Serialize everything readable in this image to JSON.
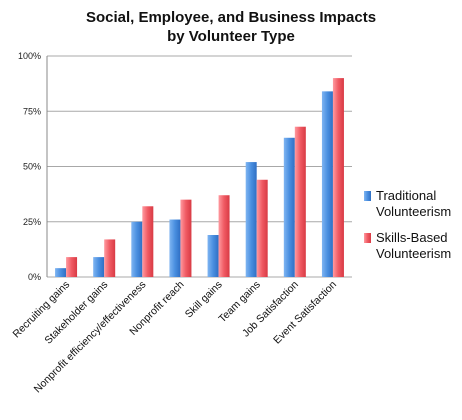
{
  "chart_data": {
    "type": "bar",
    "title_line1": "Social, Employee, and Business Impacts",
    "title_line2": "by Volunteer Type",
    "categories": [
      "Recruiting gains",
      "Stakeholder gains",
      "Nonprofit efficiency/effectiveness",
      "Nonprofit reach",
      "Skill gains",
      "Team gains",
      "Job Satisfaction",
      "Event Satisfaction"
    ],
    "series": [
      {
        "name": "Traditional Volunteerism",
        "legend_lines": [
          "Traditional",
          "Volunteerism"
        ],
        "color": "#4a8fe0",
        "values": [
          4,
          9,
          25,
          26,
          19,
          52,
          63,
          84
        ]
      },
      {
        "name": "Skills-Based Volunteerism",
        "legend_lines": [
          "Skills-Based",
          "Volunteerism"
        ],
        "color": "#f05a63",
        "values": [
          9,
          17,
          32,
          35,
          37,
          44,
          68,
          90
        ]
      }
    ],
    "yticks": [
      0,
      25,
      50,
      75,
      100
    ],
    "ytick_labels": [
      "0%",
      "25%",
      "50%",
      "75%",
      "100%"
    ],
    "ylim": [
      0,
      100
    ],
    "grid": true,
    "legend_position": "right"
  }
}
